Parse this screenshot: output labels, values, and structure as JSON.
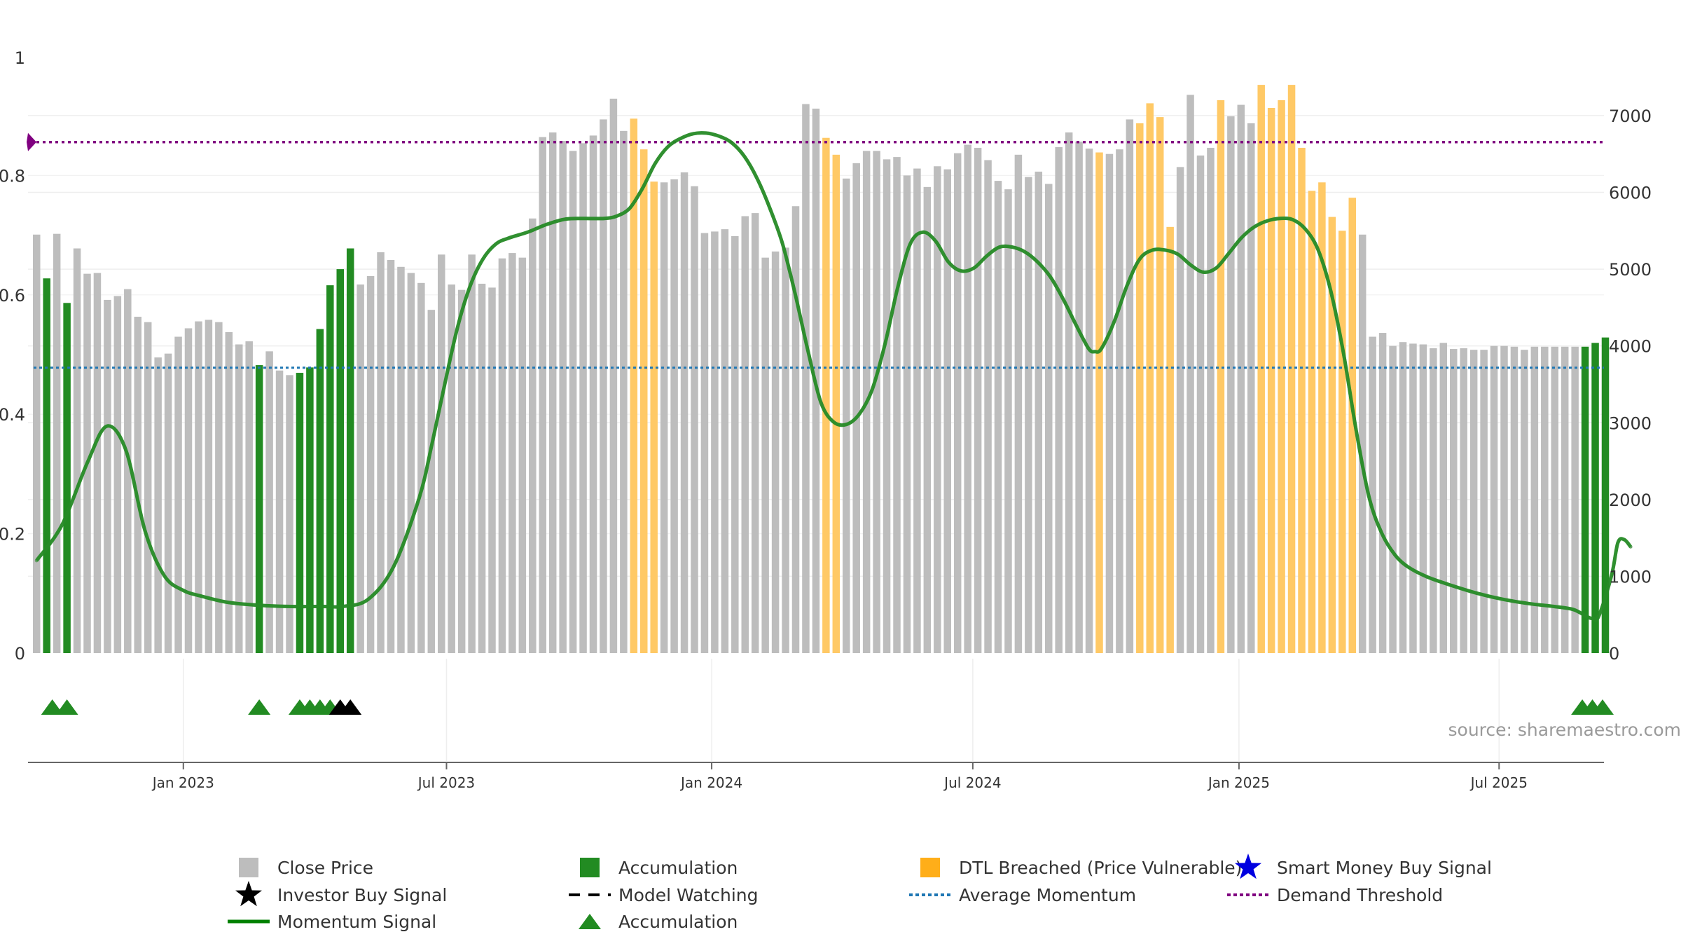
{
  "chart_data": {
    "type": "bar",
    "source_label": "source: sharemaestro.com",
    "x_tick_labels": [
      "Jan 2023",
      "Jul 2023",
      "Jan 2024",
      "Jul 2024",
      "Jan 2025",
      "Jul 2025"
    ],
    "left_axis": {
      "ylim": [
        0,
        1
      ],
      "tick_labels": [
        "0",
        "0.2",
        "0.4",
        "0.6",
        "0.8",
        "1"
      ],
      "tick_values": [
        0,
        0.2,
        0.4,
        0.6,
        0.8,
        1
      ]
    },
    "right_axis": {
      "ylim": [
        0,
        7775
      ],
      "tick_labels": [
        "0",
        "1000",
        "2000",
        "3000",
        "4000",
        "5000",
        "6000",
        "7000"
      ],
      "tick_values": [
        0,
        1000,
        2000,
        3000,
        4000,
        5000,
        6000,
        7000
      ]
    },
    "series": [
      {
        "name": "Close Price",
        "axis": "right",
        "type": "bar",
        "values": [
          5450,
          5180,
          5460,
          4860,
          5270,
          4940,
          4950,
          4600,
          4650,
          4740,
          4380,
          4310,
          3850,
          3900,
          4120,
          4230,
          4320,
          4340,
          4310,
          4180,
          4020,
          4060,
          3750,
          3930,
          3680,
          3620,
          3650,
          3720,
          4220,
          4790,
          5000,
          5270,
          4800,
          4910,
          5220,
          5120,
          5030,
          4950,
          4820,
          4470,
          5190,
          4800,
          4730,
          5190,
          4810,
          4760,
          5140,
          5210,
          5150,
          5660,
          6720,
          6780,
          6670,
          6540,
          6640,
          6740,
          6950,
          7220,
          6800,
          6960,
          6560,
          6140,
          6130,
          6170,
          6260,
          6080,
          5470,
          5490,
          5520,
          5430,
          5690,
          5730,
          5150,
          5230,
          5280,
          5820,
          7150,
          7090,
          6710,
          6490,
          6180,
          6380,
          6540,
          6540,
          6430,
          6460,
          6220,
          6310,
          6070,
          6340,
          6300,
          6510,
          6620,
          6580,
          6420,
          6150,
          6040,
          6490,
          6200,
          6270,
          6110,
          6590,
          6780,
          6660,
          6570,
          6520,
          6500,
          6560,
          6950,
          6900,
          7160,
          6980,
          5550,
          6330,
          7270,
          6480,
          6580,
          7200,
          6990,
          7140,
          6900,
          7400,
          7100,
          7200,
          7400,
          6580,
          6020,
          6130,
          5680,
          5500,
          5930,
          5450,
          4120,
          4170,
          4000,
          4050,
          4030,
          4020,
          3970,
          4040,
          3960,
          3970,
          3950,
          3950,
          4000,
          4000,
          3990,
          3950,
          3990,
          3990,
          3990,
          3990,
          3990,
          3990,
          4040,
          4110
        ],
        "color_by_index": "signal"
      },
      {
        "name": "Momentum Signal",
        "axis": "left",
        "type": "line",
        "points": [
          [
            0,
            0.155
          ],
          [
            4,
            0.215
          ],
          [
            8,
            0.32
          ],
          [
            11,
            0.38
          ],
          [
            14,
            0.34
          ],
          [
            17,
            0.205
          ],
          [
            20,
            0.13
          ],
          [
            23,
            0.105
          ],
          [
            26,
            0.095
          ],
          [
            30,
            0.085
          ],
          [
            35,
            0.08
          ],
          [
            40,
            0.078
          ],
          [
            45,
            0.078
          ],
          [
            48,
            0.078
          ],
          [
            52,
            0.09
          ],
          [
            56,
            0.145
          ],
          [
            60,
            0.26
          ],
          [
            62,
            0.35
          ],
          [
            64,
            0.45
          ],
          [
            66,
            0.545
          ],
          [
            68,
            0.615
          ],
          [
            70,
            0.66
          ],
          [
            72,
            0.685
          ],
          [
            74,
            0.695
          ],
          [
            77,
            0.705
          ],
          [
            80,
            0.718
          ],
          [
            83,
            0.727
          ],
          [
            86,
            0.728
          ],
          [
            89,
            0.728
          ],
          [
            91,
            0.732
          ],
          [
            93,
            0.745
          ],
          [
            95,
            0.778
          ],
          [
            97,
            0.82
          ],
          [
            99,
            0.848
          ],
          [
            101,
            0.862
          ],
          [
            103,
            0.87
          ],
          [
            105,
            0.871
          ],
          [
            107,
            0.866
          ],
          [
            109,
            0.855
          ],
          [
            111,
            0.832
          ],
          [
            113,
            0.795
          ],
          [
            115,
            0.745
          ],
          [
            117,
            0.685
          ],
          [
            119,
            0.6
          ],
          [
            121,
            0.505
          ],
          [
            123,
            0.42
          ],
          [
            125,
            0.387
          ],
          [
            127,
            0.383
          ],
          [
            129,
            0.4
          ],
          [
            131,
            0.44
          ],
          [
            133,
            0.515
          ],
          [
            135,
            0.61
          ],
          [
            137,
            0.685
          ],
          [
            139,
            0.705
          ],
          [
            141,
            0.69
          ],
          [
            143,
            0.655
          ],
          [
            145,
            0.64
          ],
          [
            147,
            0.645
          ],
          [
            149,
            0.665
          ],
          [
            151,
            0.68
          ],
          [
            153,
            0.68
          ],
          [
            155,
            0.672
          ],
          [
            157,
            0.655
          ],
          [
            159,
            0.63
          ],
          [
            161,
            0.593
          ],
          [
            163,
            0.55
          ],
          [
            165,
            0.51
          ],
          [
            166,
            0.505
          ],
          [
            167,
            0.51
          ],
          [
            169,
            0.555
          ],
          [
            171,
            0.615
          ],
          [
            173,
            0.66
          ],
          [
            175,
            0.675
          ],
          [
            177,
            0.675
          ],
          [
            179,
            0.668
          ],
          [
            181,
            0.65
          ],
          [
            183,
            0.638
          ],
          [
            185,
            0.645
          ],
          [
            187,
            0.67
          ],
          [
            189,
            0.696
          ],
          [
            191,
            0.714
          ],
          [
            193,
            0.724
          ],
          [
            195,
            0.728
          ],
          [
            197,
            0.726
          ],
          [
            199,
            0.71
          ],
          [
            201,
            0.675
          ],
          [
            203,
            0.605
          ],
          [
            205,
            0.5
          ],
          [
            207,
            0.37
          ],
          [
            209,
            0.26
          ],
          [
            211,
            0.2
          ],
          [
            213,
            0.165
          ],
          [
            215,
            0.145
          ],
          [
            218,
            0.128
          ],
          [
            222,
            0.113
          ],
          [
            226,
            0.1
          ],
          [
            230,
            0.09
          ],
          [
            234,
            0.083
          ],
          [
            238,
            0.078
          ],
          [
            241,
            0.073
          ],
          [
            243,
            0.062
          ],
          [
            244,
            0.058
          ],
          [
            245,
            0.062
          ],
          [
            247,
            0.13
          ],
          [
            248,
            0.185
          ],
          [
            249,
            0.19
          ],
          [
            250,
            0.178
          ]
        ]
      },
      {
        "name": "Demand Threshold",
        "axis": "left",
        "type": "hline",
        "value": 0.856,
        "color": "#800080"
      },
      {
        "name": "Average Momentum",
        "axis": "left",
        "type": "hline",
        "value": 0.478,
        "color": "#1f77b4"
      }
    ],
    "bar_signal": {
      "accumulation_indices": [
        1,
        3,
        22,
        26,
        27,
        28,
        29,
        30,
        31,
        153,
        154,
        155
      ],
      "dtl_indices": [
        59,
        60,
        61,
        78,
        79,
        105,
        109,
        110,
        111,
        112,
        117,
        121,
        122,
        123,
        124,
        125,
        126,
        127,
        128,
        129,
        130
      ]
    },
    "accumulation_markers": {
      "green_indices": [
        1,
        3,
        22,
        26,
        27,
        28,
        29
      ],
      "black_indices": [
        30,
        31
      ],
      "green_end_indices": [
        153,
        154,
        155
      ]
    },
    "x_tick_bar_positions": [
      14.5,
      40.5,
      66.7,
      92.5,
      118.8,
      144.5
    ],
    "colors": {
      "price_bar": "#bdbdbd",
      "accumulation": "#228b22",
      "dtl": "#ffc966",
      "momentum": "#008000",
      "momentum_light": "#5a9a5a",
      "demand": "#800080",
      "avg_momentum": "#1f77b4",
      "smart_money": "#0000e0",
      "investor": "#000000"
    },
    "legend": [
      {
        "label": "Close Price",
        "icon": "gray-square"
      },
      {
        "label": "Accumulation",
        "icon": "green-square"
      },
      {
        "label": "DTL Breached (Price Vulnerable)",
        "icon": "orange-square"
      },
      {
        "label": "Smart Money Buy Signal",
        "icon": "blue-star"
      },
      {
        "label": "Investor Buy Signal",
        "icon": "black-star"
      },
      {
        "label": "Model Watching",
        "icon": "black-dash"
      },
      {
        "label": "Average Momentum",
        "icon": "blue-dotted"
      },
      {
        "label": "Demand Threshold",
        "icon": "purple-dotted"
      },
      {
        "label": "Momentum Signal",
        "icon": "green-line"
      },
      {
        "label": "Accumulation",
        "icon": "green-triangle"
      }
    ]
  }
}
